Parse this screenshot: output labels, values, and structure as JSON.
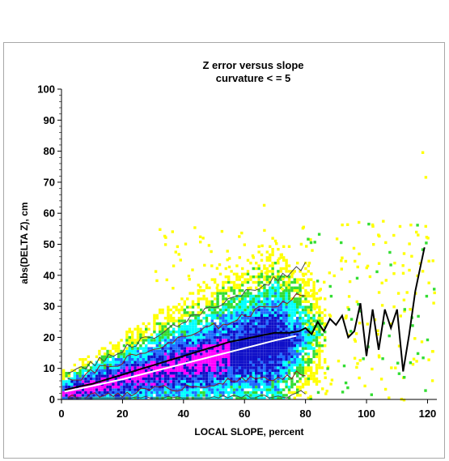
{
  "chart_data": {
    "type": "heatmap",
    "title_line1": "Z error versus slope",
    "title_line2": "curvature < = 5",
    "xlabel": "LOCAL SLOPE, percent",
    "ylabel": "abs(DELTA Z), cm",
    "xlim": [
      0,
      122
    ],
    "ylim": [
      0,
      100
    ],
    "x_ticks": [
      "0",
      "20",
      "40",
      "60",
      "80",
      "100",
      "120"
    ],
    "y_ticks": [
      "0",
      "10",
      "20",
      "30",
      "40",
      "50",
      "60",
      "70",
      "80",
      "90",
      "100"
    ],
    "grid": false,
    "density_colors": [
      "#ffff00",
      "#33dd33",
      "#00ffff",
      "#1e6cff",
      "#1010c8",
      "#ff00ff"
    ],
    "density_ranks": [
      "lowest",
      "low",
      "medium",
      "medium-high",
      "high",
      "highest"
    ],
    "series": [
      {
        "role": "mean (black curve)",
        "color": "#000000",
        "x": [
          1,
          5,
          10,
          15,
          20,
          25,
          30,
          35,
          40,
          45,
          50,
          55,
          60,
          65,
          70,
          75,
          78,
          80,
          82,
          84,
          86,
          88,
          90,
          92,
          94,
          96,
          98,
          100,
          102,
          104,
          106,
          108,
          110,
          112,
          114,
          116,
          119
        ],
        "y": [
          3,
          4,
          5,
          6.5,
          8,
          9.5,
          11,
          12.5,
          14,
          15.5,
          17,
          18.5,
          19.5,
          20.5,
          21.5,
          21.5,
          22,
          23,
          21,
          25,
          22,
          26,
          24,
          27,
          20,
          22,
          31,
          14,
          29,
          16,
          29,
          23,
          29,
          9,
          21,
          35,
          49
        ]
      },
      {
        "role": "trend (white line)",
        "color": "#ffffff",
        "x": [
          1,
          10,
          20,
          30,
          40,
          50,
          60,
          70,
          77
        ],
        "y": [
          2.5,
          4.3,
          6.5,
          9,
          11.5,
          14,
          16.5,
          19,
          20.5
        ]
      }
    ]
  }
}
